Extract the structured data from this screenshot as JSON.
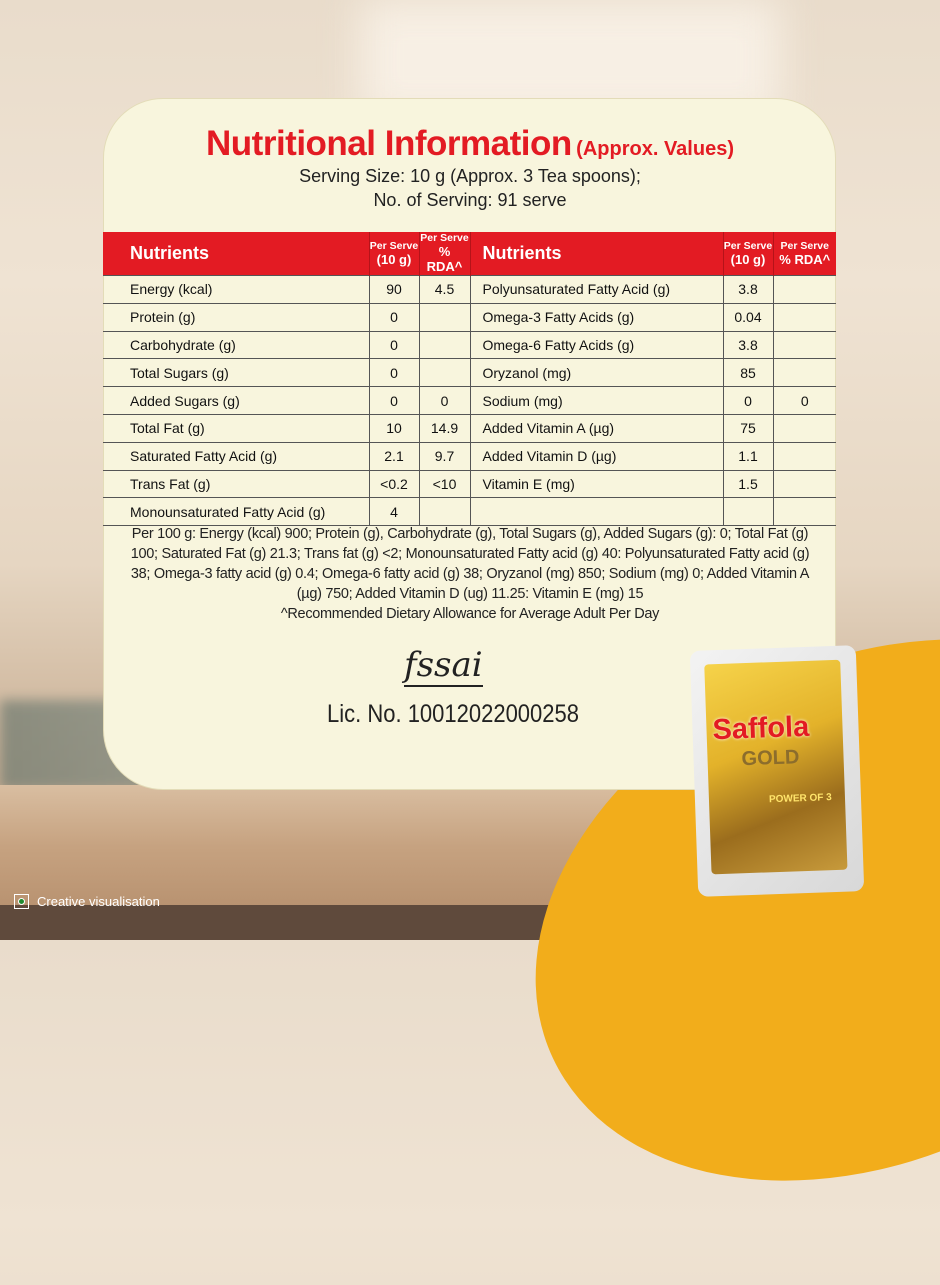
{
  "title": {
    "main": "Nutritional Information",
    "sub": "(Approx. Values)"
  },
  "serving": {
    "size": "Serving Size: 10 g (Approx. 3 Tea spoons);",
    "count": "No. of Serving: 91 serve"
  },
  "table": {
    "headers": {
      "nutrients": "Nutrients",
      "per_serve_1": "Per Serve",
      "per_serve_2": "(10 g)",
      "rda_1": "Per Serve",
      "rda_2": "% RDA^"
    },
    "left": [
      [
        "Energy (kcal)",
        "90",
        "4.5"
      ],
      [
        "Protein (g)",
        "0",
        ""
      ],
      [
        "Carbohydrate (g)",
        "0",
        ""
      ],
      [
        "Total Sugars (g)",
        "0",
        ""
      ],
      [
        "Added Sugars (g)",
        "0",
        "0"
      ],
      [
        "Total Fat (g)",
        "10",
        "14.9"
      ],
      [
        "Saturated Fatty Acid (g)",
        "2.1",
        "9.7"
      ],
      [
        "Trans Fat (g)",
        "<0.2",
        "<10"
      ],
      [
        "Monounsaturated Fatty Acid (g)",
        "4",
        ""
      ]
    ],
    "right": [
      [
        "Polyunsaturated Fatty Acid (g)",
        "3.8",
        ""
      ],
      [
        "Omega-3 Fatty Acids (g)",
        "0.04",
        ""
      ],
      [
        "Omega-6 Fatty Acids (g)",
        "3.8",
        ""
      ],
      [
        "Oryzanol (mg)",
        "85",
        ""
      ],
      [
        "Sodium (mg)",
        "0",
        "0"
      ],
      [
        "Added Vitamin A (µg)",
        "75",
        ""
      ],
      [
        "Added Vitamin D (µg)",
        "1.1",
        ""
      ],
      [
        "Vitamin E (mg)",
        "1.5",
        ""
      ],
      [
        "",
        "",
        ""
      ]
    ]
  },
  "footnote": {
    "per100": "Per 100 g: Energy (kcal) 900; Protein (g), Carbohydrate (g), Total Sugars (g), Added Sugars (g): 0; Total Fat (g) 100; Saturated Fat (g) 21.3; Trans fat (g) <2; Monounsaturated Fatty acid (g) 40: Polyunsaturated Fatty acid (g) 38; Omega-3 fatty acid (g) 0.4; Omega-6 fatty acid (g) 38; Oryzanol (mg) 850; Sodium (mg) 0; Added Vitamin A (µg) 750; Added Vitamin D (ug) 11.25: Vitamin E (mg) 15",
    "rda": "^Recommended Dietary Allowance for Average Adult Per Day"
  },
  "fssai": {
    "logo": "fssai",
    "license": "Lic. No. 10012022000258"
  },
  "product": {
    "brand": "Saffola",
    "variant": "GOLD",
    "tagline": "POWER OF 3"
  },
  "disclaimer": "Creative visualisation",
  "colors": {
    "accent": "#e31b23",
    "card": "#f8f5dd",
    "swoosh": "#f2ad1b"
  }
}
